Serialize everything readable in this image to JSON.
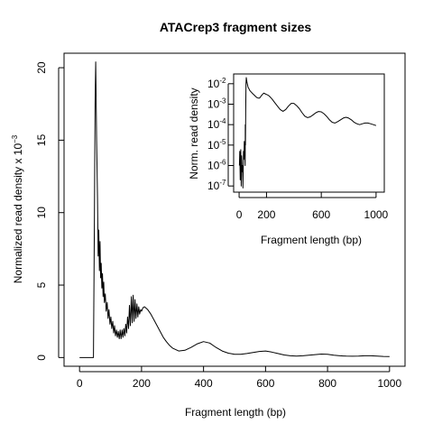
{
  "chart_data": [
    {
      "type": "line",
      "title": "ATACrep3 fragment sizes",
      "xlabel": "Fragment length (bp)",
      "ylabel": "Normalized read density x 10",
      "ylabel_exponent": "−3",
      "xlim": [
        -50,
        1050
      ],
      "ylim": [
        -0.6,
        21.0
      ],
      "xticks": [
        0,
        200,
        400,
        600,
        800,
        1000
      ],
      "yticks": [
        0,
        5,
        10,
        15,
        20
      ],
      "series": [
        {
          "x": [
            0,
            45,
            48,
            50,
            52,
            55,
            58,
            60,
            62,
            64,
            66,
            68,
            70,
            72,
            74,
            76,
            78,
            80,
            83,
            86,
            89,
            92,
            95,
            98,
            101,
            104,
            107,
            110,
            113,
            116,
            119,
            122,
            125,
            128,
            131,
            134,
            137,
            140,
            143,
            146,
            149,
            152,
            155,
            158,
            161,
            164,
            167,
            170,
            173,
            176,
            179,
            182,
            185,
            188,
            191,
            194,
            197,
            200,
            205,
            210,
            215,
            220,
            230,
            240,
            250,
            260,
            270,
            280,
            290,
            300,
            320,
            340,
            360,
            380,
            400,
            420,
            440,
            460,
            480,
            500,
            520,
            540,
            560,
            580,
            600,
            620,
            640,
            660,
            680,
            700,
            720,
            740,
            760,
            780,
            800,
            820,
            840,
            860,
            880,
            900,
            920,
            940,
            960,
            980,
            1000
          ],
          "values": [
            0.0,
            0.0,
            10.0,
            17.5,
            20.4,
            15.0,
            11.0,
            7.0,
            8.8,
            6.0,
            8.0,
            5.5,
            6.5,
            4.8,
            5.8,
            4.2,
            5.2,
            3.8,
            4.4,
            3.2,
            3.8,
            2.7,
            3.3,
            2.3,
            2.8,
            2.0,
            2.5,
            1.7,
            2.2,
            1.5,
            1.9,
            1.4,
            1.8,
            1.3,
            1.9,
            1.3,
            1.9,
            1.4,
            2.0,
            1.5,
            2.3,
            1.7,
            2.8,
            2.0,
            3.6,
            2.2,
            4.2,
            2.4,
            4.3,
            2.5,
            4.0,
            2.7,
            3.7,
            2.8,
            3.5,
            3.0,
            3.3,
            3.2,
            3.45,
            3.5,
            3.4,
            3.3,
            3.0,
            2.6,
            2.2,
            1.8,
            1.4,
            1.1,
            0.85,
            0.65,
            0.45,
            0.5,
            0.7,
            0.95,
            1.1,
            1.0,
            0.7,
            0.45,
            0.3,
            0.22,
            0.22,
            0.28,
            0.35,
            0.42,
            0.45,
            0.38,
            0.28,
            0.18,
            0.12,
            0.1,
            0.12,
            0.16,
            0.2,
            0.24,
            0.22,
            0.16,
            0.12,
            0.1,
            0.09,
            0.1,
            0.12,
            0.12,
            0.1,
            0.08,
            0.07
          ]
        }
      ]
    },
    {
      "type": "line",
      "title": "",
      "xlabel": "Fragment length (bp)",
      "ylabel": "Norm. read density",
      "yscale": "log",
      "xlim": [
        -40,
        1060
      ],
      "ylim": [
        5e-08,
        0.03
      ],
      "xticks": [
        0,
        200,
        600,
        1000
      ],
      "yticks": [
        {
          "base": "10",
          "exp": "-2",
          "value": 0.01
        },
        {
          "base": "10",
          "exp": "-3",
          "value": 0.001
        },
        {
          "base": "10",
          "exp": "-4",
          "value": 0.0001
        },
        {
          "base": "10",
          "exp": "-5",
          "value": 1e-05
        },
        {
          "base": "10",
          "exp": "-6",
          "value": 1e-06
        },
        {
          "base": "10",
          "exp": "-7",
          "value": 1e-07
        }
      ],
      "series": [
        {
          "x": [
            2,
            5,
            8,
            12,
            15,
            18,
            22,
            25,
            28,
            32,
            35,
            38,
            40,
            42,
            44,
            45,
            46,
            48,
            50,
            52,
            55,
            58,
            62,
            66,
            70,
            75,
            80,
            90,
            100,
            110,
            120,
            130,
            140,
            150,
            160,
            170,
            180,
            190,
            200,
            210,
            220,
            240,
            260,
            280,
            300,
            320,
            340,
            360,
            380,
            400,
            420,
            440,
            460,
            480,
            500,
            520,
            540,
            560,
            580,
            600,
            620,
            640,
            660,
            680,
            700,
            720,
            740,
            760,
            780,
            800,
            820,
            840,
            860,
            880,
            900,
            920,
            940,
            960,
            980,
            1000
          ],
          "values": [
            1e-06,
            5e-06,
            2e-07,
            6e-06,
            1e-07,
            3e-06,
            5e-07,
            1e-06,
            8e-08,
            5e-06,
            2e-06,
            1.5e-05,
            3e-06,
            6e-06,
            1e-06,
            0.0001,
            1e-05,
            0.0005,
            0.01,
            0.02,
            0.015,
            0.011,
            0.0085,
            0.0065,
            0.006,
            0.005,
            0.0045,
            0.0038,
            0.0032,
            0.0028,
            0.0024,
            0.0021,
            0.002,
            0.002,
            0.0025,
            0.003,
            0.0035,
            0.0032,
            0.003,
            0.0028,
            0.0025,
            0.0018,
            0.0012,
            0.0008,
            0.00055,
            0.00045,
            0.00055,
            0.0008,
            0.0011,
            0.0011,
            0.00085,
            0.0006,
            0.00038,
            0.00026,
            0.00022,
            0.00024,
            0.0003,
            0.00038,
            0.00044,
            0.00042,
            0.00034,
            0.00025,
            0.00017,
            0.00013,
            0.00012,
            0.00014,
            0.00017,
            0.00021,
            0.00023,
            0.00021,
            0.00017,
            0.00013,
            0.00011,
            0.0001,
            0.00011,
            0.00012,
            0.00012,
            0.00011,
            0.0001,
            9e-05
          ]
        }
      ]
    }
  ]
}
